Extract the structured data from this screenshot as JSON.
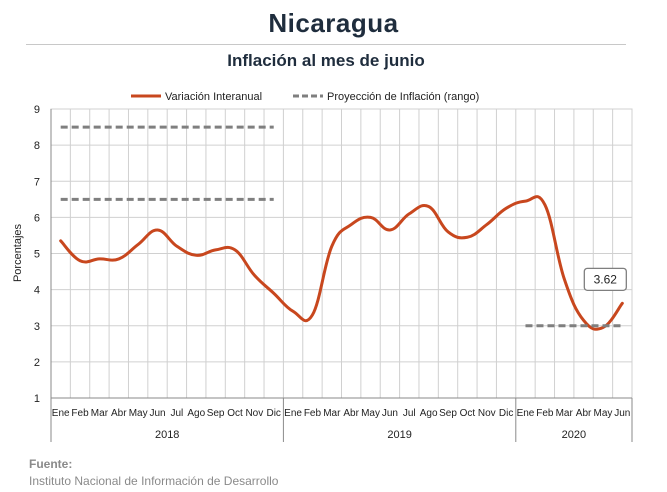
{
  "header": {
    "title": "Nicaragua",
    "subtitle": "Inflación al mes de junio"
  },
  "footer": {
    "source_label": "Fuente:",
    "source_text": "Instituto Nacional de Información de  Desarrollo"
  },
  "colors": {
    "series": "#c8471e",
    "projection": "#7f7f7f",
    "grid": "#d0d0d0",
    "axis": "#8a8a8a"
  },
  "chart_data": {
    "type": "line",
    "title": "Inflación al mes de junio",
    "ylabel": "Porcentajes",
    "ylim": [
      1,
      9
    ],
    "yticks": [
      1,
      2,
      3,
      4,
      5,
      6,
      7,
      8,
      9
    ],
    "grid": true,
    "legend_position": "top-center",
    "categories": [
      "Ene",
      "Feb",
      "Mar",
      "Abr",
      "May",
      "Jun",
      "Jul",
      "Ago",
      "Sep",
      "Oct",
      "Nov",
      "Dic",
      "Ene",
      "Feb",
      "Mar",
      "Abr",
      "May",
      "Jun",
      "Jul",
      "Ago",
      "Sep",
      "Oct",
      "Nov",
      "Dic",
      "Ene",
      "Feb",
      "Mar",
      "Abr",
      "May",
      "Jun"
    ],
    "years": [
      {
        "label": "2018",
        "months": 12
      },
      {
        "label": "2019",
        "months": 12
      },
      {
        "label": "2020",
        "months": 6
      }
    ],
    "series": [
      {
        "name": "Variación Interanual",
        "style": "solid",
        "values": [
          5.35,
          4.8,
          4.85,
          4.85,
          5.25,
          5.65,
          5.2,
          4.95,
          5.1,
          5.1,
          4.4,
          3.9,
          3.4,
          3.3,
          5.2,
          5.8,
          6.0,
          5.65,
          6.1,
          6.3,
          5.6,
          5.45,
          5.8,
          6.25,
          6.45,
          6.35,
          4.3,
          3.15,
          2.95,
          3.62
        ]
      },
      {
        "name": "Proyección de Inflación (rango)",
        "style": "dashed",
        "segments": [
          {
            "from": 0,
            "to": 11,
            "value": 8.5
          },
          {
            "from": 0,
            "to": 11,
            "value": 6.5
          },
          {
            "from": 24,
            "to": 29,
            "value": 3.0
          }
        ]
      }
    ],
    "annotations": [
      {
        "index": 29,
        "value": 3.62,
        "text": "3.62"
      }
    ]
  }
}
